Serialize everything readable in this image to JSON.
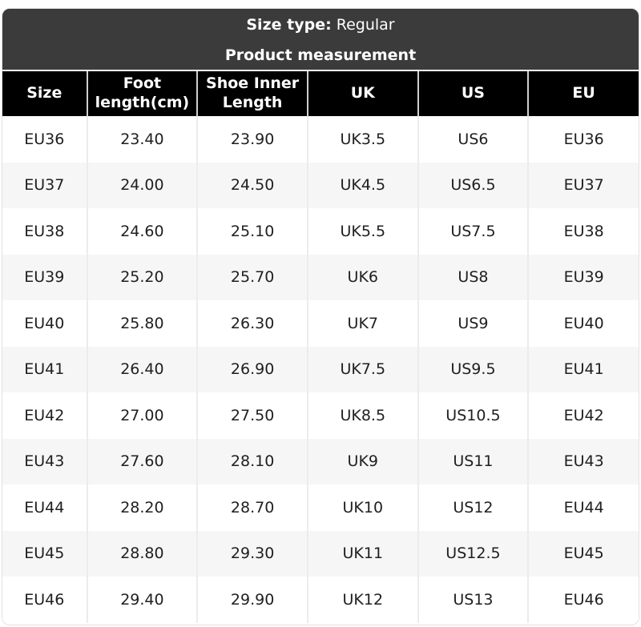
{
  "header": {
    "size_type_label": "Size type:",
    "size_type_value": "Regular",
    "subtitle": "Product measurement"
  },
  "table": {
    "columns": [
      "Size",
      "Foot length(cm)",
      "Shoe Inner Length",
      "UK",
      "US",
      "EU"
    ],
    "rows": [
      [
        "EU36",
        "23.40",
        "23.90",
        "UK3.5",
        "US6",
        "EU36"
      ],
      [
        "EU37",
        "24.00",
        "24.50",
        "UK4.5",
        "US6.5",
        "EU37"
      ],
      [
        "EU38",
        "24.60",
        "25.10",
        "UK5.5",
        "US7.5",
        "EU38"
      ],
      [
        "EU39",
        "25.20",
        "25.70",
        "UK6",
        "US8",
        "EU39"
      ],
      [
        "EU40",
        "25.80",
        "26.30",
        "UK7",
        "US9",
        "EU40"
      ],
      [
        "EU41",
        "26.40",
        "26.90",
        "UK7.5",
        "US9.5",
        "EU41"
      ],
      [
        "EU42",
        "27.00",
        "27.50",
        "UK8.5",
        "US10.5",
        "EU42"
      ],
      [
        "EU43",
        "27.60",
        "28.10",
        "UK9",
        "US11",
        "EU43"
      ],
      [
        "EU44",
        "28.20",
        "28.70",
        "UK10",
        "US12",
        "EU44"
      ],
      [
        "EU45",
        "28.80",
        "29.30",
        "UK11",
        "US12.5",
        "EU45"
      ],
      [
        "EU46",
        "29.40",
        "29.90",
        "UK12",
        "US13",
        "EU46"
      ]
    ]
  },
  "colors": {
    "title_band_bg": "#3b3b3b",
    "header_bg": "#000000",
    "row_alt_bg": "#f6f6f7",
    "separator_header": "#cfcfcf",
    "separator_body": "#ececec",
    "text_dark": "#202020",
    "card_border": "#e2e2e2"
  }
}
